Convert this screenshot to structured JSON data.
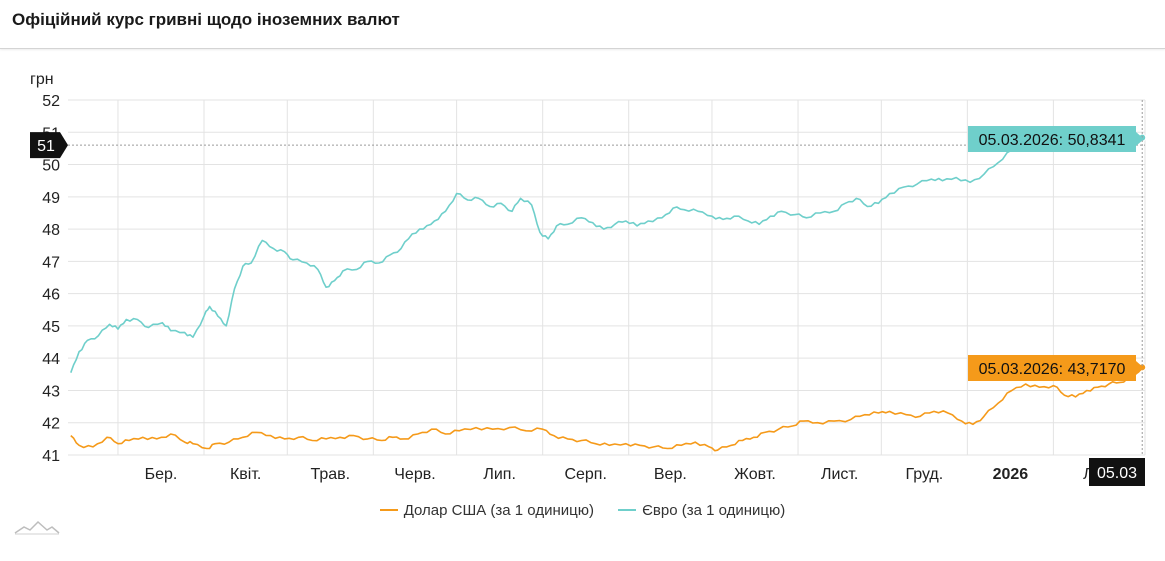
{
  "page": {
    "title": "Офіційний курс гривні щодо іноземних валют"
  },
  "colors": {
    "usd": "#f59a1a",
    "eur": "#6fcfcb",
    "usd_label_bg": "#f59a1a",
    "eur_label_bg": "#6fcfcb",
    "crosshair_bg": "#111111"
  },
  "icons": {
    "logo": "mountains-logo-icon"
  },
  "chart_data": {
    "type": "line",
    "ylabel": "грн",
    "ylim": [
      41,
      52
    ],
    "yticks": [
      41,
      42,
      43,
      44,
      45,
      46,
      47,
      48,
      49,
      50,
      51,
      52
    ],
    "xlim": [
      "2025-02-11",
      "2026-03-06"
    ],
    "month_ticks": [
      {
        "label": "Бер.",
        "date": "2025-03-01"
      },
      {
        "label": "Квіт.",
        "date": "2025-04-01"
      },
      {
        "label": "Трав.",
        "date": "2025-05-01"
      },
      {
        "label": "Черв.",
        "date": "2025-06-01"
      },
      {
        "label": "Лип.",
        "date": "2025-07-01"
      },
      {
        "label": "Серп.",
        "date": "2025-08-01"
      },
      {
        "label": "Вер.",
        "date": "2025-09-01"
      },
      {
        "label": "Жовт.",
        "date": "2025-10-01"
      },
      {
        "label": "Лист.",
        "date": "2025-11-01"
      },
      {
        "label": "Груд.",
        "date": "2025-12-01"
      },
      {
        "label": "2026",
        "date": "2026-01-01",
        "bold": true
      },
      {
        "label": "Лют.",
        "date": "2026-02-01"
      }
    ],
    "series": [
      {
        "name": "Долар США (за 1 одиницю)",
        "key": "usd",
        "points": [
          [
            "2025-02-12",
            41.6
          ],
          [
            "2025-02-15",
            41.3
          ],
          [
            "2025-02-20",
            41.25
          ],
          [
            "2025-02-25",
            41.55
          ],
          [
            "2025-03-01",
            41.35
          ],
          [
            "2025-03-05",
            41.45
          ],
          [
            "2025-03-10",
            41.55
          ],
          [
            "2025-03-15",
            41.5
          ],
          [
            "2025-03-20",
            41.65
          ],
          [
            "2025-03-25",
            41.4
          ],
          [
            "2025-03-28",
            41.35
          ],
          [
            "2025-04-02",
            41.2
          ],
          [
            "2025-04-05",
            41.35
          ],
          [
            "2025-04-10",
            41.4
          ],
          [
            "2025-04-15",
            41.55
          ],
          [
            "2025-04-20",
            41.7
          ],
          [
            "2025-04-25",
            41.6
          ],
          [
            "2025-04-30",
            41.5
          ],
          [
            "2025-05-05",
            41.55
          ],
          [
            "2025-05-10",
            41.45
          ],
          [
            "2025-05-15",
            41.5
          ],
          [
            "2025-05-20",
            41.55
          ],
          [
            "2025-05-25",
            41.6
          ],
          [
            "2025-05-30",
            41.5
          ],
          [
            "2025-06-04",
            41.45
          ],
          [
            "2025-06-08",
            41.55
          ],
          [
            "2025-06-12",
            41.5
          ],
          [
            "2025-06-17",
            41.65
          ],
          [
            "2025-06-22",
            41.8
          ],
          [
            "2025-06-27",
            41.65
          ],
          [
            "2025-07-02",
            41.75
          ],
          [
            "2025-07-08",
            41.85
          ],
          [
            "2025-07-14",
            41.8
          ],
          [
            "2025-07-20",
            41.85
          ],
          [
            "2025-07-26",
            41.75
          ],
          [
            "2025-08-01",
            41.8
          ],
          [
            "2025-08-05",
            41.6
          ],
          [
            "2025-08-10",
            41.5
          ],
          [
            "2025-08-15",
            41.45
          ],
          [
            "2025-08-20",
            41.35
          ],
          [
            "2025-08-25",
            41.3
          ],
          [
            "2025-08-31",
            41.35
          ],
          [
            "2025-09-05",
            41.3
          ],
          [
            "2025-09-10",
            41.25
          ],
          [
            "2025-09-15",
            41.2
          ],
          [
            "2025-09-20",
            41.3
          ],
          [
            "2025-09-25",
            41.4
          ],
          [
            "2025-09-30",
            41.25
          ],
          [
            "2025-10-03",
            41.15
          ],
          [
            "2025-10-08",
            41.3
          ],
          [
            "2025-10-12",
            41.45
          ],
          [
            "2025-10-16",
            41.55
          ],
          [
            "2025-10-20",
            41.7
          ],
          [
            "2025-10-25",
            41.8
          ],
          [
            "2025-10-30",
            41.9
          ],
          [
            "2025-11-03",
            42.05
          ],
          [
            "2025-11-08",
            42.0
          ],
          [
            "2025-11-14",
            42.05
          ],
          [
            "2025-11-20",
            42.1
          ],
          [
            "2025-11-25",
            42.25
          ],
          [
            "2025-11-30",
            42.3
          ],
          [
            "2025-12-04",
            42.35
          ],
          [
            "2025-12-10",
            42.25
          ],
          [
            "2025-12-15",
            42.2
          ],
          [
            "2025-12-20",
            42.35
          ],
          [
            "2025-12-25",
            42.3
          ],
          [
            "2025-12-30",
            42.05
          ],
          [
            "2026-01-03",
            41.95
          ],
          [
            "2026-01-07",
            42.2
          ],
          [
            "2026-01-12",
            42.6
          ],
          [
            "2026-01-17",
            43.0
          ],
          [
            "2026-01-22",
            43.2
          ],
          [
            "2026-01-27",
            43.1
          ],
          [
            "2026-02-01",
            43.15
          ],
          [
            "2026-02-05",
            42.85
          ],
          [
            "2026-02-09",
            42.8
          ],
          [
            "2026-02-13",
            43.0
          ],
          [
            "2026-02-17",
            43.1
          ],
          [
            "2026-02-21",
            43.2
          ],
          [
            "2026-02-25",
            43.25
          ],
          [
            "2026-03-01",
            43.35
          ],
          [
            "2026-03-05",
            43.717
          ]
        ]
      },
      {
        "name": "Євро (за 1 одиницю)",
        "key": "eur",
        "points": [
          [
            "2025-02-12",
            43.55
          ],
          [
            "2025-02-15",
            44.2
          ],
          [
            "2025-02-18",
            44.55
          ],
          [
            "2025-02-22",
            44.7
          ],
          [
            "2025-02-26",
            45.05
          ],
          [
            "2025-03-01",
            44.9
          ],
          [
            "2025-03-04",
            45.2
          ],
          [
            "2025-03-08",
            45.2
          ],
          [
            "2025-03-12",
            44.95
          ],
          [
            "2025-03-17",
            45.1
          ],
          [
            "2025-03-20",
            44.85
          ],
          [
            "2025-03-25",
            44.8
          ],
          [
            "2025-03-28",
            44.65
          ],
          [
            "2025-04-01",
            45.3
          ],
          [
            "2025-04-03",
            45.6
          ],
          [
            "2025-04-06",
            45.3
          ],
          [
            "2025-04-09",
            45.0
          ],
          [
            "2025-04-12",
            46.15
          ],
          [
            "2025-04-15",
            46.85
          ],
          [
            "2025-04-18",
            46.95
          ],
          [
            "2025-04-22",
            47.65
          ],
          [
            "2025-04-26",
            47.4
          ],
          [
            "2025-04-30",
            47.3
          ],
          [
            "2025-05-03",
            47.05
          ],
          [
            "2025-05-08",
            46.95
          ],
          [
            "2025-05-12",
            46.75
          ],
          [
            "2025-05-15",
            46.2
          ],
          [
            "2025-05-18",
            46.4
          ],
          [
            "2025-05-21",
            46.7
          ],
          [
            "2025-05-26",
            46.75
          ],
          [
            "2025-05-30",
            47.0
          ],
          [
            "2025-06-03",
            46.95
          ],
          [
            "2025-06-07",
            47.2
          ],
          [
            "2025-06-11",
            47.4
          ],
          [
            "2025-06-15",
            47.85
          ],
          [
            "2025-06-19",
            48.0
          ],
          [
            "2025-06-23",
            48.25
          ],
          [
            "2025-06-27",
            48.55
          ],
          [
            "2025-07-01",
            49.1
          ],
          [
            "2025-07-05",
            48.9
          ],
          [
            "2025-07-09",
            48.95
          ],
          [
            "2025-07-13",
            48.7
          ],
          [
            "2025-07-17",
            48.8
          ],
          [
            "2025-07-21",
            48.55
          ],
          [
            "2025-07-24",
            48.95
          ],
          [
            "2025-07-28",
            48.75
          ],
          [
            "2025-07-31",
            47.9
          ],
          [
            "2025-08-03",
            47.7
          ],
          [
            "2025-08-06",
            48.1
          ],
          [
            "2025-08-10",
            48.15
          ],
          [
            "2025-08-15",
            48.35
          ],
          [
            "2025-08-19",
            48.2
          ],
          [
            "2025-08-23",
            48.0
          ],
          [
            "2025-08-27",
            48.15
          ],
          [
            "2025-08-31",
            48.25
          ],
          [
            "2025-09-04",
            48.1
          ],
          [
            "2025-09-08",
            48.25
          ],
          [
            "2025-09-13",
            48.35
          ],
          [
            "2025-09-17",
            48.65
          ],
          [
            "2025-09-21",
            48.6
          ],
          [
            "2025-09-26",
            48.55
          ],
          [
            "2025-10-01",
            48.4
          ],
          [
            "2025-10-05",
            48.3
          ],
          [
            "2025-10-09",
            48.4
          ],
          [
            "2025-10-14",
            48.25
          ],
          [
            "2025-10-18",
            48.15
          ],
          [
            "2025-10-22",
            48.4
          ],
          [
            "2025-10-26",
            48.55
          ],
          [
            "2025-10-31",
            48.45
          ],
          [
            "2025-11-04",
            48.35
          ],
          [
            "2025-11-09",
            48.5
          ],
          [
            "2025-11-14",
            48.55
          ],
          [
            "2025-11-18",
            48.8
          ],
          [
            "2025-11-22",
            48.95
          ],
          [
            "2025-11-26",
            48.7
          ],
          [
            "2025-11-30",
            48.8
          ],
          [
            "2025-12-04",
            49.1
          ],
          [
            "2025-12-09",
            49.3
          ],
          [
            "2025-12-14",
            49.4
          ],
          [
            "2025-12-19",
            49.55
          ],
          [
            "2025-12-23",
            49.5
          ],
          [
            "2025-12-28",
            49.6
          ],
          [
            "2026-01-02",
            49.45
          ],
          [
            "2026-01-07",
            49.7
          ],
          [
            "2026-01-12",
            50.05
          ],
          [
            "2026-01-17",
            50.45
          ],
          [
            "2026-01-22",
            50.65
          ],
          [
            "2026-01-27",
            50.75
          ],
          [
            "2026-02-01",
            50.8
          ],
          [
            "2026-02-06",
            50.85
          ],
          [
            "2026-02-11",
            50.9
          ],
          [
            "2026-02-16",
            50.95
          ],
          [
            "2026-02-21",
            51.0
          ],
          [
            "2026-02-26",
            50.95
          ],
          [
            "2026-03-01",
            50.8
          ],
          [
            "2026-03-05",
            50.8341
          ]
        ]
      }
    ],
    "tooltips": {
      "usd": "05.03.2026: 43,7170",
      "eur": "05.03.2026: 50,8341"
    },
    "crosshair": {
      "y_value": 50.6,
      "y_label": "51",
      "x_date": "2026-03-05",
      "x_label": "05.03"
    },
    "legend_position": "bottom-center",
    "grid": true
  }
}
